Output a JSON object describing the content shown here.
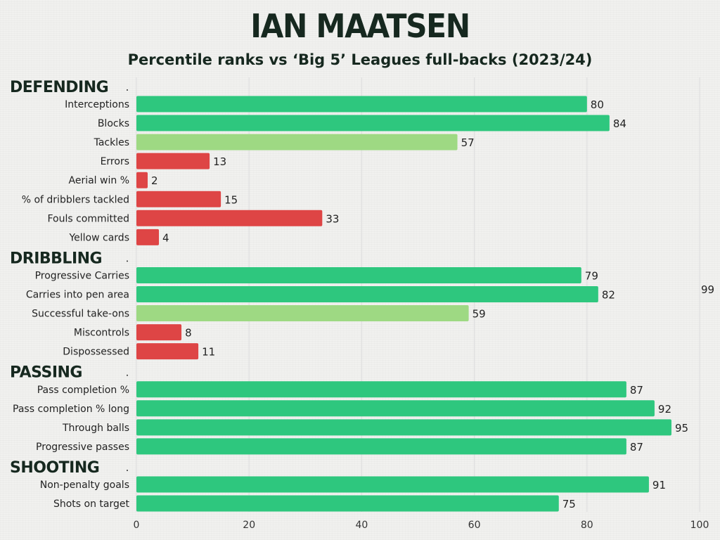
{
  "title": "IAN MAATSEN",
  "subtitle": "Percentile ranks vs ‘Big 5’ Leagues full-backs (2023/24)",
  "colors": {
    "high": "#2ec77e",
    "mid": "#9ed983",
    "low": "#de4545",
    "heading": "#16281f",
    "grid": "#dcdcdc"
  },
  "chart_data": {
    "type": "bar",
    "orientation": "horizontal",
    "title": "IAN MAATSEN",
    "subtitle": "Percentile ranks vs ‘Big 5’ Leagues full-backs (2023/24)",
    "xlim": [
      0,
      100
    ],
    "xticks": [
      0,
      20,
      40,
      60,
      80,
      100
    ],
    "grid": true,
    "stray_label": "99",
    "groups": [
      {
        "name": "DEFENDING",
        "items": [
          {
            "label": "Interceptions",
            "value": 80,
            "tier": "high"
          },
          {
            "label": "Blocks",
            "value": 84,
            "tier": "high"
          },
          {
            "label": "Tackles",
            "value": 57,
            "tier": "mid"
          },
          {
            "label": "Errors",
            "value": 13,
            "tier": "low"
          },
          {
            "label": "Aerial win %",
            "value": 2,
            "tier": "low"
          },
          {
            "label": "% of dribblers tackled",
            "value": 15,
            "tier": "low"
          },
          {
            "label": "Fouls committed",
            "value": 33,
            "tier": "low"
          },
          {
            "label": "Yellow cards",
            "value": 4,
            "tier": "low"
          }
        ]
      },
      {
        "name": "DRIBBLING",
        "items": [
          {
            "label": "Progressive Carries",
            "value": 79,
            "tier": "high"
          },
          {
            "label": "Carries into pen area",
            "value": 82,
            "tier": "high"
          },
          {
            "label": "Successful take-ons",
            "value": 59,
            "tier": "mid"
          },
          {
            "label": "Miscontrols",
            "value": 8,
            "tier": "low"
          },
          {
            "label": "Dispossessed",
            "value": 11,
            "tier": "low"
          }
        ]
      },
      {
        "name": "PASSING",
        "items": [
          {
            "label": "Pass completion %",
            "value": 87,
            "tier": "high"
          },
          {
            "label": "Pass completion % long",
            "value": 92,
            "tier": "high"
          },
          {
            "label": "Through balls",
            "value": 95,
            "tier": "high"
          },
          {
            "label": "Progressive passes",
            "value": 87,
            "tier": "high"
          }
        ]
      },
      {
        "name": "SHOOTING",
        "items": [
          {
            "label": "Non-penalty goals",
            "value": 91,
            "tier": "high"
          },
          {
            "label": "Shots on target",
            "value": 75,
            "tier": "high"
          }
        ]
      }
    ]
  }
}
